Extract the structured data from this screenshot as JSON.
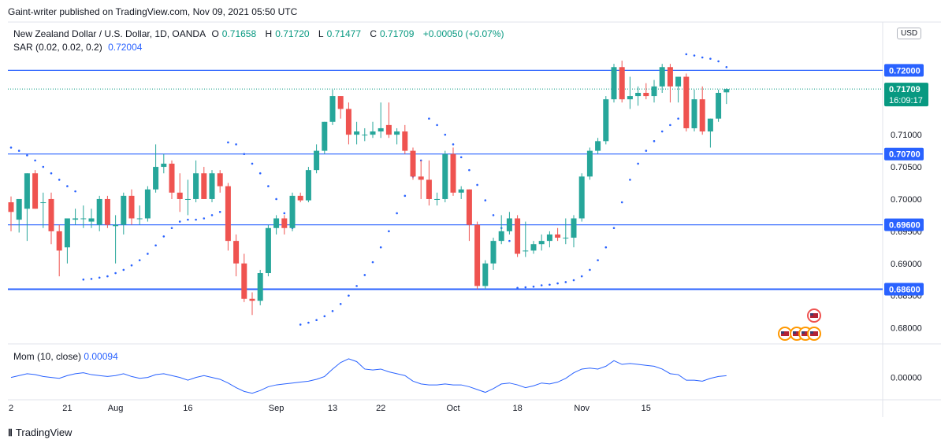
{
  "header": {
    "published": "Gaint-writer published on TradingView.com, Nov 09, 2021 05:50 UTC"
  },
  "legend": {
    "symbol": "New Zealand Dollar / U.S. Dollar, 1D, OANDA",
    "o_label": "O",
    "o": "0.71658",
    "h_label": "H",
    "h": "0.71720",
    "l_label": "L",
    "l": "0.71477",
    "c_label": "C",
    "c": "0.71709",
    "change": "+0.00050 (+0.07%)",
    "sar_label": "SAR (0.02, 0.02, 0.2)",
    "sar_value": "0.72004"
  },
  "currency_badge": "USD",
  "mom_legend": {
    "label": "Mom (10, close)",
    "value": "0.00094"
  },
  "footer": {
    "brand": "TradingView"
  },
  "colors": {
    "up": "#26a69a",
    "down": "#ef5350",
    "level": "#2962ff",
    "sar": "#2962ff",
    "price_line": "#089981"
  },
  "chart_data": {
    "type": "candlestick",
    "ylim": [
      0.6775,
      0.7275
    ],
    "y_ticks": [
      "0.72000",
      "0.71000",
      "0.70500",
      "0.70000",
      "0.69500",
      "0.69000",
      "0.68500",
      "0.68000"
    ],
    "x_ticks": [
      "2",
      "21",
      "Aug",
      "16",
      "Sep",
      "13",
      "22",
      "Oct",
      "18",
      "Nov",
      "15"
    ],
    "levels": [
      {
        "value": 0.72,
        "label": "0.72000"
      },
      {
        "value": 0.707,
        "label": "0.70700"
      },
      {
        "value": 0.696,
        "label": "0.69600"
      },
      {
        "value": 0.686,
        "label": "0.68600"
      }
    ],
    "last_price": {
      "value": 0.71709,
      "label": "0.71709",
      "countdown": "16:09:17"
    },
    "candles": [
      {
        "o": 0.6995,
        "h": 0.7004,
        "l": 0.695,
        "c": 0.698
      },
      {
        "o": 0.6968,
        "h": 0.6998,
        "l": 0.6948,
        "c": 0.7
      },
      {
        "o": 0.6985,
        "h": 0.704,
        "l": 0.6935,
        "c": 0.704
      },
      {
        "o": 0.704,
        "h": 0.7045,
        "l": 0.6985,
        "c": 0.6985
      },
      {
        "o": 0.6995,
        "h": 0.701,
        "l": 0.6955,
        "c": 0.6995
      },
      {
        "o": 0.7,
        "h": 0.701,
        "l": 0.693,
        "c": 0.695
      },
      {
        "o": 0.695,
        "h": 0.696,
        "l": 0.688,
        "c": 0.692
      },
      {
        "o": 0.6925,
        "h": 0.697,
        "l": 0.69,
        "c": 0.697
      },
      {
        "o": 0.6968,
        "h": 0.6985,
        "l": 0.696,
        "c": 0.697
      },
      {
        "o": 0.697,
        "h": 0.699,
        "l": 0.6955,
        "c": 0.697
      },
      {
        "o": 0.6965,
        "h": 0.6985,
        "l": 0.6955,
        "c": 0.697
      },
      {
        "o": 0.696,
        "h": 0.7005,
        "l": 0.695,
        "c": 0.7
      },
      {
        "o": 0.7,
        "h": 0.7005,
        "l": 0.6955,
        "c": 0.696
      },
      {
        "o": 0.6958,
        "h": 0.6975,
        "l": 0.69,
        "c": 0.696
      },
      {
        "o": 0.696,
        "h": 0.701,
        "l": 0.6945,
        "c": 0.7005
      },
      {
        "o": 0.7005,
        "h": 0.7015,
        "l": 0.696,
        "c": 0.697
      },
      {
        "o": 0.697,
        "h": 0.699,
        "l": 0.696,
        "c": 0.697
      },
      {
        "o": 0.697,
        "h": 0.702,
        "l": 0.6965,
        "c": 0.7015
      },
      {
        "o": 0.7015,
        "h": 0.7085,
        "l": 0.701,
        "c": 0.705
      },
      {
        "o": 0.705,
        "h": 0.707,
        "l": 0.704,
        "c": 0.7055
      },
      {
        "o": 0.7055,
        "h": 0.706,
        "l": 0.7,
        "c": 0.701
      },
      {
        "o": 0.701,
        "h": 0.704,
        "l": 0.698,
        "c": 0.7
      },
      {
        "o": 0.7,
        "h": 0.703,
        "l": 0.6975,
        "c": 0.7
      },
      {
        "o": 0.7,
        "h": 0.706,
        "l": 0.6995,
        "c": 0.704
      },
      {
        "o": 0.704,
        "h": 0.705,
        "l": 0.7,
        "c": 0.7
      },
      {
        "o": 0.7,
        "h": 0.7045,
        "l": 0.6995,
        "c": 0.704
      },
      {
        "o": 0.704,
        "h": 0.7045,
        "l": 0.701,
        "c": 0.702
      },
      {
        "o": 0.702,
        "h": 0.7025,
        "l": 0.692,
        "c": 0.6935
      },
      {
        "o": 0.6935,
        "h": 0.6945,
        "l": 0.688,
        "c": 0.69
      },
      {
        "o": 0.69,
        "h": 0.6915,
        "l": 0.684,
        "c": 0.6845
      },
      {
        "o": 0.6845,
        "h": 0.6855,
        "l": 0.682,
        "c": 0.6842
      },
      {
        "o": 0.6842,
        "h": 0.689,
        "l": 0.6835,
        "c": 0.6885
      },
      {
        "o": 0.6885,
        "h": 0.696,
        "l": 0.688,
        "c": 0.6955
      },
      {
        "o": 0.6955,
        "h": 0.6975,
        "l": 0.6945,
        "c": 0.697
      },
      {
        "o": 0.697,
        "h": 0.6975,
        "l": 0.6945,
        "c": 0.6955
      },
      {
        "o": 0.6955,
        "h": 0.701,
        "l": 0.695,
        "c": 0.7005
      },
      {
        "o": 0.7005,
        "h": 0.701,
        "l": 0.6995,
        "c": 0.6998
      },
      {
        "o": 0.6998,
        "h": 0.705,
        "l": 0.6995,
        "c": 0.7045
      },
      {
        "o": 0.7045,
        "h": 0.7085,
        "l": 0.704,
        "c": 0.7075
      },
      {
        "o": 0.7075,
        "h": 0.712,
        "l": 0.707,
        "c": 0.712
      },
      {
        "o": 0.712,
        "h": 0.717,
        "l": 0.7115,
        "c": 0.716
      },
      {
        "o": 0.716,
        "h": 0.716,
        "l": 0.7125,
        "c": 0.714
      },
      {
        "o": 0.714,
        "h": 0.715,
        "l": 0.7085,
        "c": 0.71
      },
      {
        "o": 0.71,
        "h": 0.712,
        "l": 0.7085,
        "c": 0.7105
      },
      {
        "o": 0.71,
        "h": 0.711,
        "l": 0.709,
        "c": 0.71
      },
      {
        "o": 0.71,
        "h": 0.712,
        "l": 0.7095,
        "c": 0.7105
      },
      {
        "o": 0.7105,
        "h": 0.715,
        "l": 0.7095,
        "c": 0.711
      },
      {
        "o": 0.7115,
        "h": 0.715,
        "l": 0.7095,
        "c": 0.71
      },
      {
        "o": 0.71,
        "h": 0.711,
        "l": 0.7085,
        "c": 0.7105
      },
      {
        "o": 0.7105,
        "h": 0.7115,
        "l": 0.707,
        "c": 0.7075
      },
      {
        "o": 0.7075,
        "h": 0.708,
        "l": 0.703,
        "c": 0.7035
      },
      {
        "o": 0.7035,
        "h": 0.706,
        "l": 0.7,
        "c": 0.703
      },
      {
        "o": 0.703,
        "h": 0.706,
        "l": 0.699,
        "c": 0.7
      },
      {
        "o": 0.7,
        "h": 0.701,
        "l": 0.699,
        "c": 0.7
      },
      {
        "o": 0.7,
        "h": 0.7075,
        "l": 0.6995,
        "c": 0.707
      },
      {
        "o": 0.707,
        "h": 0.708,
        "l": 0.7005,
        "c": 0.701
      },
      {
        "o": 0.701,
        "h": 0.702,
        "l": 0.7,
        "c": 0.7015
      },
      {
        "o": 0.7015,
        "h": 0.7015,
        "l": 0.6935,
        "c": 0.696
      },
      {
        "o": 0.696,
        "h": 0.6965,
        "l": 0.686,
        "c": 0.6865
      },
      {
        "o": 0.6865,
        "h": 0.6905,
        "l": 0.686,
        "c": 0.69
      },
      {
        "o": 0.69,
        "h": 0.694,
        "l": 0.689,
        "c": 0.6935
      },
      {
        "o": 0.6935,
        "h": 0.6975,
        "l": 0.693,
        "c": 0.695
      },
      {
        "o": 0.695,
        "h": 0.698,
        "l": 0.6945,
        "c": 0.697
      },
      {
        "o": 0.697,
        "h": 0.6975,
        "l": 0.691,
        "c": 0.6915
      },
      {
        "o": 0.692,
        "h": 0.6965,
        "l": 0.691,
        "c": 0.692
      },
      {
        "o": 0.692,
        "h": 0.6935,
        "l": 0.6915,
        "c": 0.693
      },
      {
        "o": 0.693,
        "h": 0.6945,
        "l": 0.692,
        "c": 0.6935
      },
      {
        "o": 0.6935,
        "h": 0.695,
        "l": 0.6925,
        "c": 0.6945
      },
      {
        "o": 0.6945,
        "h": 0.6955,
        "l": 0.6935,
        "c": 0.694
      },
      {
        "o": 0.694,
        "h": 0.697,
        "l": 0.693,
        "c": 0.694
      },
      {
        "o": 0.694,
        "h": 0.6975,
        "l": 0.6925,
        "c": 0.697
      },
      {
        "o": 0.697,
        "h": 0.704,
        "l": 0.6965,
        "c": 0.7035
      },
      {
        "o": 0.7035,
        "h": 0.708,
        "l": 0.703,
        "c": 0.7075
      },
      {
        "o": 0.7075,
        "h": 0.7095,
        "l": 0.707,
        "c": 0.709
      },
      {
        "o": 0.709,
        "h": 0.716,
        "l": 0.7085,
        "c": 0.7155
      },
      {
        "o": 0.7155,
        "h": 0.721,
        "l": 0.715,
        "c": 0.7205
      },
      {
        "o": 0.7205,
        "h": 0.7215,
        "l": 0.715,
        "c": 0.7155
      },
      {
        "o": 0.7155,
        "h": 0.719,
        "l": 0.714,
        "c": 0.716
      },
      {
        "o": 0.716,
        "h": 0.7175,
        "l": 0.7145,
        "c": 0.7165
      },
      {
        "o": 0.7165,
        "h": 0.718,
        "l": 0.7155,
        "c": 0.716
      },
      {
        "o": 0.716,
        "h": 0.7185,
        "l": 0.715,
        "c": 0.7175
      },
      {
        "o": 0.7175,
        "h": 0.721,
        "l": 0.7165,
        "c": 0.7205
      },
      {
        "o": 0.7205,
        "h": 0.721,
        "l": 0.715,
        "c": 0.7175
      },
      {
        "o": 0.7175,
        "h": 0.719,
        "l": 0.715,
        "c": 0.719
      },
      {
        "o": 0.719,
        "h": 0.7195,
        "l": 0.7105,
        "c": 0.711
      },
      {
        "o": 0.711,
        "h": 0.717,
        "l": 0.7105,
        "c": 0.7155
      },
      {
        "o": 0.7155,
        "h": 0.7175,
        "l": 0.71,
        "c": 0.7105
      },
      {
        "o": 0.7105,
        "h": 0.7125,
        "l": 0.708,
        "c": 0.7125
      },
      {
        "o": 0.7125,
        "h": 0.717,
        "l": 0.712,
        "c": 0.7165
      },
      {
        "o": 0.71658,
        "h": 0.7172,
        "l": 0.71477,
        "c": 0.71709
      }
    ],
    "sar": [
      {
        "i": 0,
        "v": 0.708
      },
      {
        "i": 1,
        "v": 0.7075
      },
      {
        "i": 2,
        "v": 0.7068
      },
      {
        "i": 3,
        "v": 0.706
      },
      {
        "i": 4,
        "v": 0.705
      },
      {
        "i": 5,
        "v": 0.704
      },
      {
        "i": 6,
        "v": 0.703
      },
      {
        "i": 7,
        "v": 0.702
      },
      {
        "i": 8,
        "v": 0.7012
      },
      {
        "i": 9,
        "v": 0.6875
      },
      {
        "i": 10,
        "v": 0.6876
      },
      {
        "i": 11,
        "v": 0.6878
      },
      {
        "i": 12,
        "v": 0.688
      },
      {
        "i": 13,
        "v": 0.6885
      },
      {
        "i": 14,
        "v": 0.689
      },
      {
        "i": 15,
        "v": 0.6897
      },
      {
        "i": 16,
        "v": 0.6905
      },
      {
        "i": 17,
        "v": 0.6915
      },
      {
        "i": 18,
        "v": 0.6928
      },
      {
        "i": 19,
        "v": 0.6942
      },
      {
        "i": 20,
        "v": 0.6955
      },
      {
        "i": 21,
        "v": 0.6965
      },
      {
        "i": 22,
        "v": 0.6968
      },
      {
        "i": 23,
        "v": 0.6968
      },
      {
        "i": 24,
        "v": 0.697
      },
      {
        "i": 25,
        "v": 0.6975
      },
      {
        "i": 26,
        "v": 0.698
      },
      {
        "i": 27,
        "v": 0.7088
      },
      {
        "i": 28,
        "v": 0.7085
      },
      {
        "i": 29,
        "v": 0.707
      },
      {
        "i": 30,
        "v": 0.7055
      },
      {
        "i": 31,
        "v": 0.704
      },
      {
        "i": 32,
        "v": 0.702
      },
      {
        "i": 33,
        "v": 0.7
      },
      {
        "i": 34,
        "v": 0.6978
      },
      {
        "i": 35,
        "v": 0.6955
      },
      {
        "i": 36,
        "v": 0.6805
      },
      {
        "i": 37,
        "v": 0.6808
      },
      {
        "i": 38,
        "v": 0.6812
      },
      {
        "i": 39,
        "v": 0.6818
      },
      {
        "i": 40,
        "v": 0.6826
      },
      {
        "i": 41,
        "v": 0.6837
      },
      {
        "i": 42,
        "v": 0.685
      },
      {
        "i": 43,
        "v": 0.6865
      },
      {
        "i": 44,
        "v": 0.6882
      },
      {
        "i": 45,
        "v": 0.6902
      },
      {
        "i": 46,
        "v": 0.6925
      },
      {
        "i": 47,
        "v": 0.695
      },
      {
        "i": 48,
        "v": 0.6978
      },
      {
        "i": 49,
        "v": 0.7005
      },
      {
        "i": 50,
        "v": 0.7035
      },
      {
        "i": 51,
        "v": 0.706
      },
      {
        "i": 52,
        "v": 0.7125
      },
      {
        "i": 53,
        "v": 0.7115
      },
      {
        "i": 54,
        "v": 0.71
      },
      {
        "i": 55,
        "v": 0.7085
      },
      {
        "i": 56,
        "v": 0.7065
      },
      {
        "i": 57,
        "v": 0.7045
      },
      {
        "i": 58,
        "v": 0.7022
      },
      {
        "i": 59,
        "v": 0.6998
      },
      {
        "i": 60,
        "v": 0.6975
      },
      {
        "i": 61,
        "v": 0.6955
      },
      {
        "i": 62,
        "v": 0.6935
      },
      {
        "i": 63,
        "v": 0.6862
      },
      {
        "i": 64,
        "v": 0.6863
      },
      {
        "i": 65,
        "v": 0.6864
      },
      {
        "i": 66,
        "v": 0.6866
      },
      {
        "i": 67,
        "v": 0.6867
      },
      {
        "i": 68,
        "v": 0.6869
      },
      {
        "i": 69,
        "v": 0.6871
      },
      {
        "i": 70,
        "v": 0.6874
      },
      {
        "i": 71,
        "v": 0.688
      },
      {
        "i": 72,
        "v": 0.689
      },
      {
        "i": 73,
        "v": 0.6905
      },
      {
        "i": 74,
        "v": 0.6925
      },
      {
        "i": 75,
        "v": 0.6955
      },
      {
        "i": 76,
        "v": 0.6995
      },
      {
        "i": 77,
        "v": 0.703
      },
      {
        "i": 78,
        "v": 0.7055
      },
      {
        "i": 79,
        "v": 0.7075
      },
      {
        "i": 80,
        "v": 0.709
      },
      {
        "i": 81,
        "v": 0.7105
      },
      {
        "i": 82,
        "v": 0.7115
      },
      {
        "i": 83,
        "v": 0.7125
      },
      {
        "i": 84,
        "v": 0.7225
      },
      {
        "i": 85,
        "v": 0.7223
      },
      {
        "i": 86,
        "v": 0.722
      },
      {
        "i": 87,
        "v": 0.7218
      },
      {
        "i": 88,
        "v": 0.7214
      },
      {
        "i": 89,
        "v": 0.7205
      }
    ],
    "momentum": {
      "ylim": [
        -0.012,
        0.018
      ],
      "y_ticks": [
        "0.00000"
      ],
      "values": [
        0.0,
        0.001,
        0.002,
        0.0015,
        0.0005,
        0.0,
        -0.0005,
        0.001,
        0.002,
        0.0025,
        0.0015,
        0.001,
        0.0005,
        0.001,
        0.002,
        0.0005,
        -0.0005,
        0.0,
        0.0015,
        0.002,
        0.001,
        0.0,
        -0.0015,
        0.0,
        0.001,
        0.0,
        -0.001,
        -0.003,
        -0.0055,
        -0.0075,
        -0.0085,
        -0.007,
        -0.005,
        -0.004,
        -0.0035,
        -0.003,
        -0.0025,
        -0.002,
        -0.001,
        0.0005,
        0.0045,
        0.008,
        0.01,
        0.0085,
        0.0045,
        0.004,
        0.0045,
        0.003,
        0.002,
        0.001,
        -0.002,
        -0.0035,
        -0.004,
        -0.004,
        -0.0035,
        -0.004,
        -0.004,
        -0.005,
        -0.0065,
        -0.008,
        -0.006,
        -0.0035,
        -0.003,
        -0.004,
        -0.0055,
        -0.0045,
        -0.003,
        -0.0035,
        -0.0025,
        -0.0005,
        0.0025,
        0.0045,
        0.005,
        0.0045,
        0.006,
        0.009,
        0.007,
        0.0075,
        0.007,
        0.0065,
        0.006,
        0.0045,
        0.002,
        0.0015,
        -0.0015,
        -0.0015,
        -0.002,
        -0.0005,
        0.0005,
        0.00094
      ]
    },
    "x_tick_positions_by_candle": [
      0,
      7,
      13,
      22,
      33,
      40,
      46,
      55,
      63,
      71,
      79
    ],
    "events": [
      "US",
      "US",
      "US",
      "US",
      "US",
      "US"
    ]
  }
}
